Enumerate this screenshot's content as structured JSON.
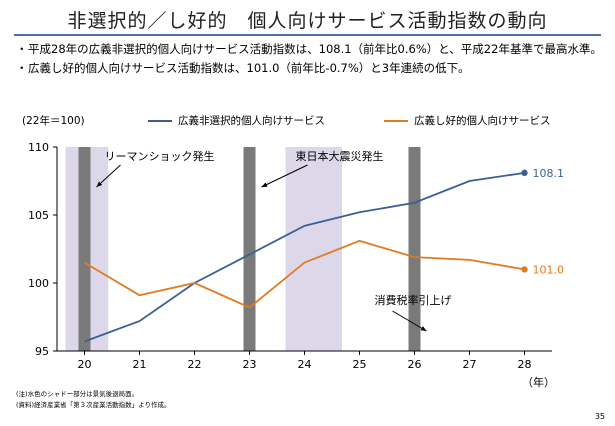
{
  "page": {
    "title": "非選択的／し好的　個人向けサービス活動指数の動向",
    "bullets": [
      "平成28年の広義非選択的個人向けサービス活動指数は、108.1（前年比0.6%）と、平成22年基準で最高水準。",
      "広義し好的個人向けサービス活動指数は、101.0（前年比-0.7%）と3年連続の低下。"
    ],
    "bullet_marker": "・",
    "notes": [
      "(注)水色のシャドー部分は景気後退局面。",
      "(資料)経済産業省「第３次産業活動指数」より作成。"
    ],
    "page_number": "35"
  },
  "chart_data": {
    "type": "line",
    "unit_label": "(22年＝100)",
    "x": [
      "20",
      "21",
      "22",
      "23",
      "24",
      "25",
      "26",
      "27",
      "28"
    ],
    "x_unit": "（年）",
    "ylim": [
      95,
      110
    ],
    "yticks": [
      95,
      100,
      105,
      110
    ],
    "series": [
      {
        "name": "広義非選択的個人向けサービス",
        "color": "#3b5f93",
        "values": [
          95.7,
          97.2,
          100.0,
          102.1,
          104.2,
          105.2,
          105.9,
          107.5,
          108.1
        ],
        "end_label": "108.1"
      },
      {
        "name": "広義し好的個人向けサービス",
        "color": "#e07b22",
        "values": [
          101.5,
          99.1,
          100.0,
          98.2,
          101.5,
          103.1,
          101.9,
          101.7,
          101.0
        ],
        "end_label": "101.0"
      }
    ],
    "recession_shading": [
      {
        "from": 20,
        "to": 20.25,
        "color": "#ddd7ea"
      },
      {
        "from": 24,
        "to": 24.5,
        "color": "#ddd7ea"
      }
    ],
    "event_bars": [
      {
        "x": 20,
        "label": "リーマンショック発生"
      },
      {
        "x": 23,
        "label": "東日本大震災発生"
      },
      {
        "x": 26,
        "label": "消費税率引上げ"
      }
    ],
    "grid": false,
    "legend_position": "top"
  }
}
